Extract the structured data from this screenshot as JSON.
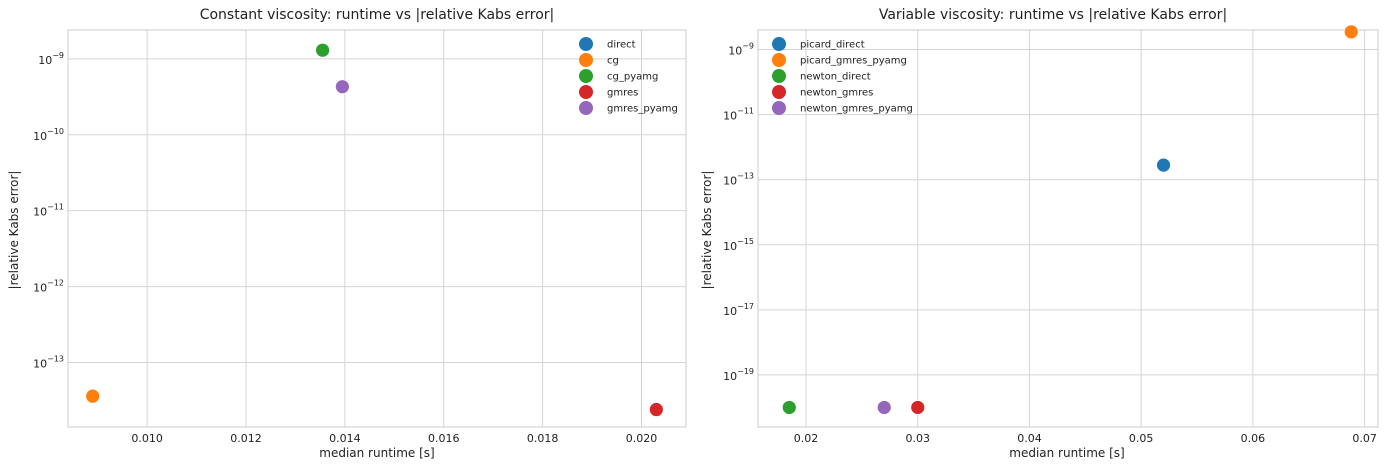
{
  "chart_data": [
    {
      "type": "scatter",
      "title": "Constant viscosity: runtime vs |relative Kabs error|",
      "xlabel": "median runtime [s]",
      "ylabel": "|relative Kabs error|",
      "xlim": [
        0.0084,
        0.0209
      ],
      "xticks": [
        "0.010",
        "0.012",
        "0.014",
        "0.016",
        "0.018",
        "0.020"
      ],
      "y_scale": "log",
      "ylim_log10": [
        -13.85,
        -8.62
      ],
      "yticks_exp": [
        "-9",
        "-10",
        "-11",
        "-12",
        "-13"
      ],
      "grid": true,
      "legend_position": "top-right",
      "series": [
        {
          "name": "direct",
          "color": "#1f77b4",
          "points": []
        },
        {
          "name": "cg",
          "color": "#ff7f0e",
          "points": [
            {
              "x": 0.0089,
              "y": 3.6e-14
            }
          ]
        },
        {
          "name": "cg_pyamg",
          "color": "#2ca02c",
          "points": [
            {
              "x": 0.01355,
              "y": 1.3e-09
            }
          ]
        },
        {
          "name": "gmres",
          "color": "#d62728",
          "points": [
            {
              "x": 0.0203,
              "y": 2.4e-14
            }
          ]
        },
        {
          "name": "gmres_pyamg",
          "color": "#9467bd",
          "points": [
            {
              "x": 0.01395,
              "y": 4.3e-10
            }
          ]
        }
      ]
    },
    {
      "type": "scatter",
      "title": "Variable viscosity: runtime vs |relative Kabs error|",
      "xlabel": "median runtime [s]",
      "ylabel": "|relative Kabs error|",
      "xlim": [
        0.0157,
        0.0712
      ],
      "xticks": [
        "0.02",
        "0.03",
        "0.04",
        "0.05",
        "0.06",
        "0.07"
      ],
      "y_scale": "log",
      "ylim_log10": [
        -20.6,
        -8.4
      ],
      "yticks_exp": [
        "-9",
        "-11",
        "-13",
        "-15",
        "-17",
        "-19"
      ],
      "grid": true,
      "legend_position": "top-left",
      "series": [
        {
          "name": "picard_direct",
          "color": "#1f77b4",
          "points": [
            {
              "x": 0.052,
              "y": 2.8e-13
            }
          ]
        },
        {
          "name": "picard_gmres_pyamg",
          "color": "#ff7f0e",
          "points": [
            {
              "x": 0.0688,
              "y": 3.5e-09
            }
          ]
        },
        {
          "name": "newton_direct",
          "color": "#2ca02c",
          "points": [
            {
              "x": 0.0185,
              "y": 1e-20
            }
          ]
        },
        {
          "name": "newton_gmres",
          "color": "#d62728",
          "points": [
            {
              "x": 0.03,
              "y": 1e-20
            }
          ]
        },
        {
          "name": "newton_gmres_pyamg",
          "color": "#9467bd",
          "points": [
            {
              "x": 0.027,
              "y": 1e-20
            }
          ]
        }
      ]
    }
  ]
}
